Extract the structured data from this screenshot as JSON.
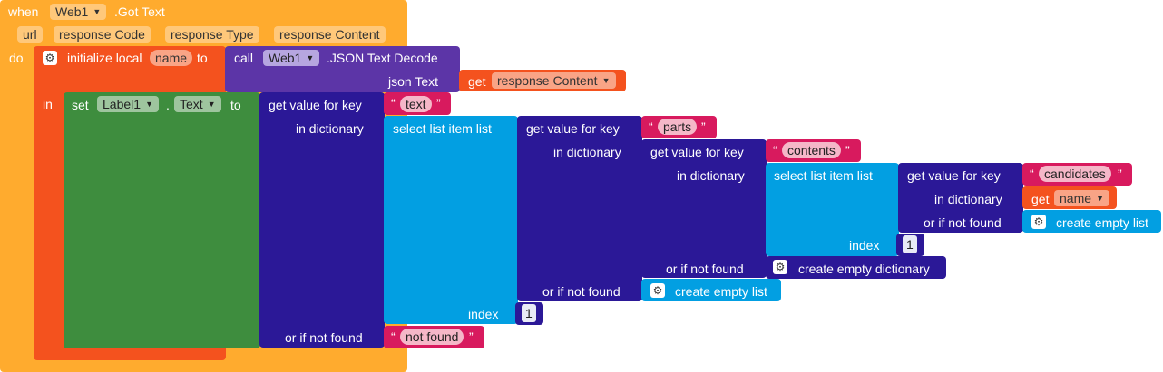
{
  "event": {
    "when": "when",
    "component": "Web1",
    "event_name": ".Got Text",
    "params": [
      "url",
      "response Code",
      "response Type",
      "response Content"
    ],
    "do": "do"
  },
  "local": {
    "initialize": "initialize local",
    "var": "name",
    "to": "to",
    "in": "in"
  },
  "call": {
    "call": "call",
    "component": "Web1",
    "method": ".JSON Text Decode",
    "json_text": "json Text",
    "get": "get",
    "get_var": "response Content"
  },
  "setter": {
    "set": "set",
    "component": "Label1",
    "dot": ".",
    "property": "Text",
    "to": "to"
  },
  "labels": {
    "get_value_for_key": "get value for key",
    "in_dictionary": "in dictionary",
    "select_list_item": "select list item  list",
    "index": "index",
    "or_if_not_found": "or if not found",
    "create_empty_dictionary": "create empty dictionary",
    "create_empty_list": "create empty list",
    "get": "get"
  },
  "strings": {
    "text": "text",
    "parts": "parts",
    "contents": "contents",
    "candidates": "candidates",
    "not_found": "not found",
    "get_name": "name"
  },
  "numbers": {
    "index_outer": "1",
    "index_inner": "1"
  },
  "colors": {
    "event": "#ffab2e",
    "variables": "#f4521e",
    "component_call": "#5c35a7",
    "setter": "#3e8d3e",
    "dictionaries": "#2b1897",
    "lists": "#029fe2",
    "text": "#d81a5e"
  }
}
